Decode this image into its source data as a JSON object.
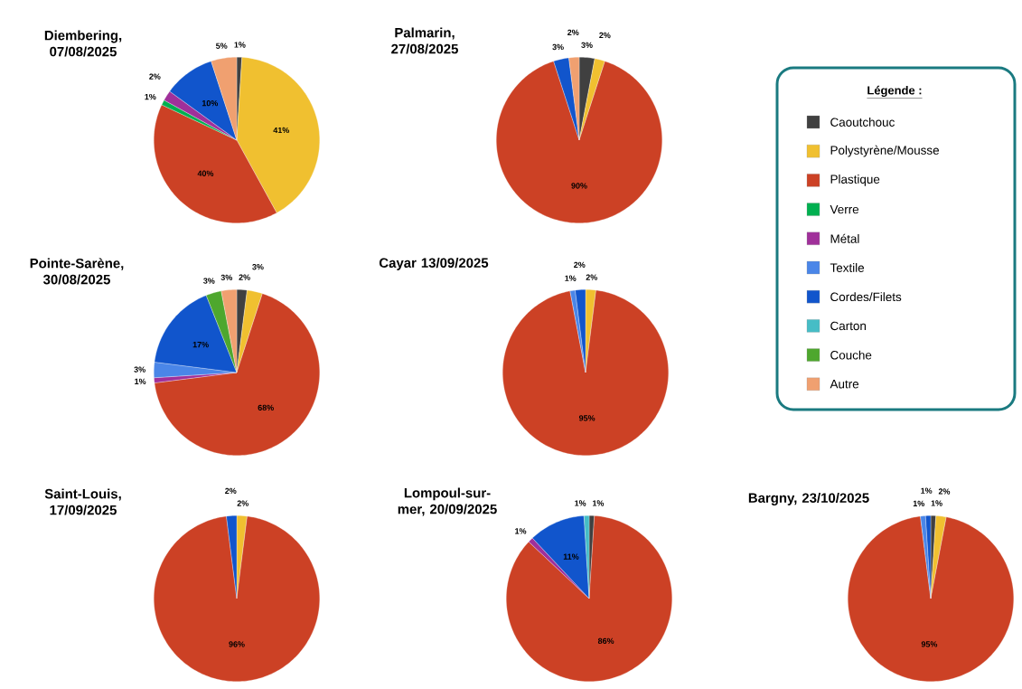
{
  "chart_data": [
    {
      "type": "pie",
      "title": "Diembering, 07/08/2025",
      "categories": [
        null,
        null,
        null,
        null,
        null,
        null,
        null,
        null,
        null,
        null
      ],
      "values": [
        1,
        41,
        40,
        1,
        2,
        null,
        10,
        null,
        null,
        5
      ],
      "value_labels": [
        "1%",
        "41%",
        "40%",
        "1%",
        "2%",
        null,
        "10%",
        null,
        null,
        "5%"
      ],
      "colors": [
        "#404040",
        "#f0c030",
        "#cc4125",
        "#00b050",
        "#a0309a",
        "#4a86e8",
        "#1155cc",
        "#46bdc6",
        "#4ea72e",
        "#f0a070"
      ]
    },
    {
      "type": "pie",
      "title": "Palmarin, 27/08/2025",
      "categories": [
        "Caoutchouc",
        "Polystyrène/Mousse",
        "Plastique",
        "Verre",
        "Métal",
        "Textile",
        "Cordes/Filets",
        "Carton",
        "Couche",
        "Autre"
      ],
      "values": [
        3,
        2,
        90,
        null,
        null,
        null,
        3,
        null,
        null,
        2
      ],
      "value_labels": [
        "3%",
        "2%",
        "90%",
        null,
        null,
        null,
        "3%",
        null,
        null,
        "2%"
      ],
      "colors": [
        "#404040",
        "#f0c030",
        "#cc4125",
        "#00b050",
        "#a0309a",
        "#4a86e8",
        "#1155cc",
        "#46bdc6",
        "#4ea72e",
        "#f0a070"
      ],
      "legend": "right",
      "legend_title": "Légende :"
    },
    {
      "type": "pie",
      "title": "Pointe-Sarène, 30/08/2025",
      "categories": [
        null,
        null,
        null,
        null,
        null,
        null,
        null,
        null,
        null,
        null
      ],
      "values": [
        2,
        3,
        68,
        null,
        1,
        3,
        17,
        null,
        3,
        3
      ],
      "value_labels": [
        "2%",
        "3%",
        "68%",
        null,
        "1%",
        "3%",
        "17%",
        null,
        "3%",
        "3%"
      ],
      "colors": [
        "#404040",
        "#f0c030",
        "#cc4125",
        "#00b050",
        "#a0309a",
        "#4a86e8",
        "#1155cc",
        "#46bdc6",
        "#4ea72e",
        "#f0a070"
      ]
    },
    {
      "type": "pie",
      "title": "Cayar 13/09/2025",
      "categories": [
        null,
        null,
        null,
        null,
        null,
        null,
        null,
        null,
        null,
        null
      ],
      "values": [
        null,
        2,
        95,
        null,
        null,
        1,
        2,
        null,
        null,
        null
      ],
      "value_labels": [
        null,
        "2%",
        "95%",
        null,
        null,
        "1%",
        "2%",
        null,
        null,
        null
      ],
      "colors": [
        "#404040",
        "#f0c030",
        "#cc4125",
        "#00b050",
        "#a0309a",
        "#4a86e8",
        "#1155cc",
        "#46bdc6",
        "#4ea72e",
        "#f0a070"
      ]
    },
    {
      "type": "pie",
      "title": "Saint-Louis, 17/09/2025",
      "categories": [
        null,
        null,
        null,
        null,
        null,
        null,
        null,
        null,
        null,
        null
      ],
      "values": [
        null,
        2,
        96,
        null,
        null,
        null,
        2,
        null,
        null,
        null
      ],
      "value_labels": [
        null,
        "2%",
        "96%",
        null,
        null,
        null,
        "2%",
        null,
        null,
        null
      ],
      "colors": [
        "#404040",
        "#f0c030",
        "#cc4125",
        "#00b050",
        "#a0309a",
        "#4a86e8",
        "#1155cc",
        "#46bdc6",
        "#4ea72e",
        "#f0a070"
      ]
    },
    {
      "type": "pie",
      "title": "Lompoul-sur-mer, 20/09/2025",
      "categories": [
        null,
        null,
        null,
        null,
        null,
        null,
        null,
        null,
        null,
        null
      ],
      "values": [
        1,
        null,
        86,
        null,
        1,
        null,
        11,
        1,
        null,
        null
      ],
      "value_labels": [
        "1%",
        null,
        "86%",
        null,
        "1%",
        null,
        "11%",
        "1%",
        null,
        null
      ],
      "colors": [
        "#404040",
        "#f0c030",
        "#cc4125",
        "#00b050",
        "#a0309a",
        "#4a86e8",
        "#1155cc",
        "#46bdc6",
        "#4ea72e",
        "#f0a070"
      ]
    },
    {
      "type": "pie",
      "title": "Bargny, 23/10/2025",
      "categories": [
        null,
        null,
        null,
        null,
        null,
        null,
        null,
        null,
        null,
        null
      ],
      "values": [
        1,
        2,
        95,
        null,
        null,
        1,
        1,
        null,
        null,
        null
      ],
      "value_labels": [
        "1%",
        "2%",
        "95%",
        null,
        null,
        "1%",
        "1%",
        null,
        null,
        null
      ],
      "colors": [
        "#404040",
        "#f0c030",
        "#cc4125",
        "#00b050",
        "#a0309a",
        "#4a86e8",
        "#1155cc",
        "#46bdc6",
        "#4ea72e",
        "#f0a070"
      ]
    }
  ]
}
